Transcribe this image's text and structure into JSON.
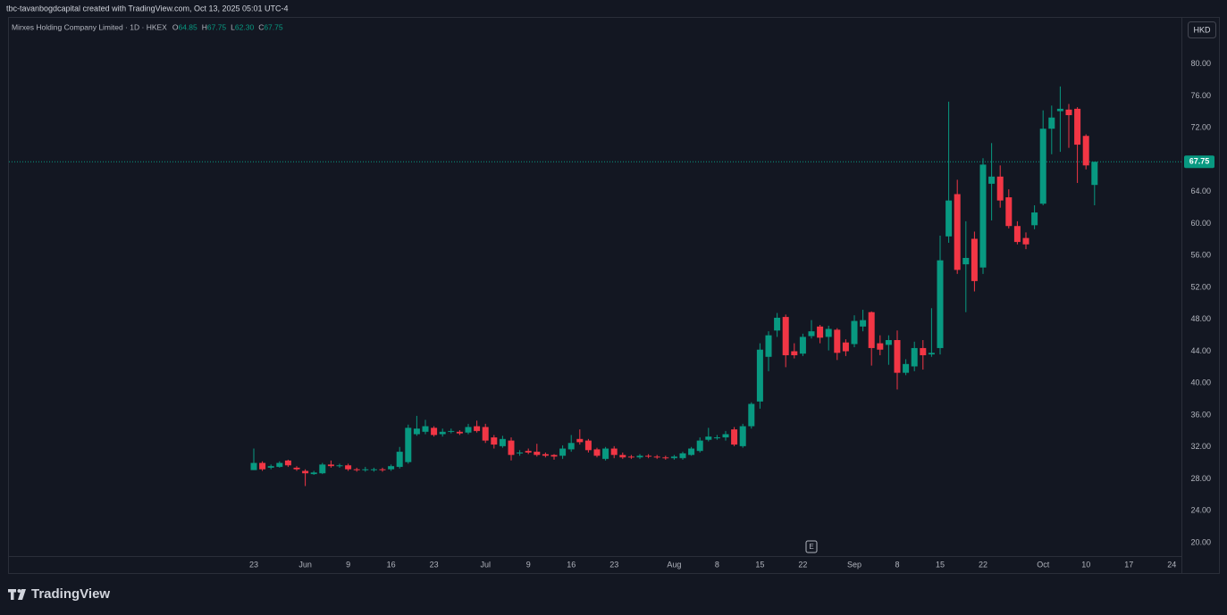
{
  "header": {
    "credit": "tbc-tavanbogdcapital created with TradingView.com, Oct 13, 2025 05:01 UTC-4"
  },
  "legend": {
    "symbol": "Mirxes Holding Company Limited · 1D · HKEX",
    "ohlc": [
      {
        "key": "O",
        "value": "64.85"
      },
      {
        "key": "H",
        "value": "67.75"
      },
      {
        "key": "L",
        "value": "62.30"
      },
      {
        "key": "C",
        "value": "67.75"
      }
    ]
  },
  "currency": "HKD",
  "brand": "TradingView",
  "chart_data": {
    "type": "candlestick",
    "up_color": "#089981",
    "down_color": "#f23645",
    "grid": false,
    "categories": [
      "23",
      null,
      null,
      null,
      null,
      null,
      "Jun",
      null,
      null,
      null,
      null,
      "9",
      null,
      null,
      null,
      null,
      "16",
      null,
      null,
      null,
      null,
      "23",
      null,
      null,
      null,
      null,
      null,
      "Jul",
      null,
      null,
      null,
      null,
      "9",
      null,
      null,
      null,
      null,
      "16",
      null,
      null,
      null,
      null,
      "23",
      null,
      null,
      null,
      null,
      null,
      null,
      "Aug",
      null,
      null,
      null,
      null,
      "8",
      null,
      null,
      null,
      null,
      "15",
      null,
      null,
      null,
      null,
      "22",
      null,
      null,
      null,
      null,
      null,
      "Sep",
      null,
      null,
      null,
      null,
      "8",
      null,
      null,
      null,
      null,
      "15",
      null,
      null,
      null,
      null,
      "22",
      null,
      null,
      null,
      null,
      null,
      null,
      "Oct",
      null,
      null,
      null,
      null,
      "10",
      null,
      null,
      null,
      null,
      "17",
      null,
      null,
      null,
      null,
      "24"
    ],
    "open": [
      29.1,
      30.0,
      29.4,
      29.5,
      30.3,
      29.4,
      29.0,
      28.6,
      28.7,
      29.8,
      29.6,
      29.7,
      29.2,
      29.2,
      29.1,
      29.2,
      29.2,
      29.5,
      30.1,
      33.6,
      33.9,
      34.4,
      33.6,
      33.9,
      33.9,
      33.8,
      34.6,
      34.5,
      33.2,
      32.1,
      32.8,
      31.3,
      31.5,
      31.4,
      31.1,
      31.0,
      30.9,
      31.7,
      33.0,
      32.8,
      31.7,
      30.5,
      31.8,
      31.0,
      30.8,
      30.7,
      30.9,
      30.8,
      30.7,
      30.6,
      30.6,
      31.0,
      31.5,
      32.9,
      33.1,
      33.2,
      34.2,
      32.1,
      34.6,
      37.7,
      43.3,
      46.6,
      48.3,
      44.0,
      43.7,
      45.9,
      47.1,
      45.8,
      46.7,
      45.1,
      44.9,
      47.1,
      48.9,
      45.0,
      44.8,
      45.4,
      41.3,
      42.1,
      44.4,
      43.6,
      44.4,
      58.4,
      63.7,
      54.9,
      58.1,
      54.5,
      65.0,
      65.9,
      63.3,
      59.7,
      58.2,
      59.8,
      62.5,
      71.9,
      74.1,
      74.3,
      74.4,
      71.0,
      64.85,
      null,
      null,
      null,
      null,
      null,
      null,
      null,
      null,
      null
    ],
    "high": [
      31.8,
      30.2,
      29.8,
      30.2,
      30.4,
      29.6,
      29.2,
      29.0,
      30.0,
      30.3,
      29.9,
      29.9,
      29.4,
      29.5,
      29.4,
      29.4,
      29.8,
      32.0,
      34.8,
      35.9,
      35.4,
      34.6,
      34.3,
      34.3,
      34.1,
      34.9,
      35.3,
      34.9,
      33.5,
      33.4,
      33.2,
      31.6,
      31.8,
      32.4,
      31.3,
      31.1,
      32.2,
      33.5,
      34.2,
      33.0,
      31.9,
      32.0,
      32.1,
      31.3,
      31.0,
      31.1,
      31.1,
      31.0,
      30.9,
      31.0,
      31.4,
      32.0,
      33.2,
      34.4,
      33.5,
      34.0,
      34.5,
      34.9,
      37.6,
      45.0,
      46.5,
      48.8,
      48.6,
      45.0,
      46.2,
      47.9,
      47.3,
      47.2,
      46.9,
      45.5,
      48.5,
      49.2,
      49.0,
      46.0,
      46.0,
      46.6,
      43.0,
      45.2,
      45.4,
      49.4,
      58.5,
      75.3,
      65.5,
      60.3,
      59.0,
      68.2,
      70.1,
      67.3,
      64.3,
      60.3,
      58.9,
      62.3,
      74.2,
      74.8,
      77.2,
      75.0,
      74.6,
      71.2,
      67.75,
      null,
      null,
      null,
      null,
      null,
      null,
      null,
      null,
      null
    ],
    "low": [
      29.1,
      29.0,
      29.2,
      29.4,
      29.5,
      29.0,
      27.1,
      28.5,
      28.6,
      29.4,
      29.4,
      29.0,
      28.9,
      28.9,
      28.9,
      28.9,
      29.0,
      29.3,
      29.9,
      33.4,
      33.6,
      33.3,
      33.3,
      33.7,
      33.5,
      33.6,
      33.8,
      32.5,
      31.8,
      31.9,
      30.3,
      30.9,
      31.1,
      30.8,
      30.7,
      30.4,
      30.5,
      31.4,
      32.3,
      31.3,
      30.7,
      30.3,
      30.6,
      30.5,
      30.5,
      30.5,
      30.6,
      30.5,
      30.4,
      30.4,
      30.4,
      30.9,
      31.3,
      32.7,
      32.9,
      32.8,
      32.1,
      31.9,
      34.3,
      36.8,
      41.5,
      45.8,
      42.0,
      43.1,
      43.4,
      45.6,
      45.0,
      44.1,
      42.9,
      43.4,
      44.5,
      46.5,
      42.2,
      43.5,
      42.3,
      39.2,
      41.0,
      41.5,
      41.7,
      43.3,
      43.6,
      57.6,
      53.7,
      48.9,
      51.5,
      53.7,
      60.4,
      62.0,
      59.4,
      57.4,
      56.8,
      59.3,
      62.3,
      68.7,
      69.0,
      69.5,
      65.1,
      66.8,
      62.3,
      null,
      null,
      null,
      null,
      null,
      null,
      null,
      null,
      null
    ],
    "close": [
      30.0,
      29.2,
      29.6,
      30.0,
      29.7,
      29.2,
      28.7,
      28.8,
      29.8,
      29.6,
      29.7,
      29.2,
      29.1,
      29.2,
      29.2,
      29.1,
      29.6,
      31.4,
      34.4,
      34.3,
      34.6,
      33.5,
      33.9,
      34.0,
      33.7,
      34.5,
      34.0,
      32.8,
      32.3,
      33.0,
      31.0,
      31.3,
      31.3,
      31.0,
      30.9,
      30.8,
      31.8,
      32.5,
      32.6,
      31.6,
      30.9,
      31.8,
      31.0,
      30.7,
      30.7,
      30.9,
      30.8,
      30.7,
      30.6,
      30.8,
      31.2,
      31.8,
      32.8,
      33.3,
      33.2,
      33.6,
      32.3,
      34.6,
      37.4,
      44.2,
      46.0,
      48.2,
      43.5,
      43.5,
      45.8,
      46.5,
      45.7,
      46.8,
      43.8,
      44.0,
      47.8,
      47.9,
      44.4,
      44.2,
      45.4,
      41.3,
      42.4,
      44.4,
      43.5,
      43.8,
      55.4,
      62.9,
      54.2,
      55.7,
      52.8,
      67.4,
      65.9,
      62.9,
      59.7,
      57.7,
      57.4,
      61.4,
      71.9,
      73.3,
      74.4,
      73.6,
      69.9,
      67.3,
      67.75,
      null,
      null,
      null,
      null,
      null,
      null,
      null,
      null,
      null
    ],
    "ylim": [
      16.08,
      85.8
    ],
    "yticks": [
      {
        "value": 20,
        "label": "20.00"
      },
      {
        "value": 24,
        "label": "24.00"
      },
      {
        "value": 28,
        "label": "28.00"
      },
      {
        "value": 32,
        "label": "32.00"
      },
      {
        "value": 36,
        "label": "36.00"
      },
      {
        "value": 40,
        "label": "40.00"
      },
      {
        "value": 44,
        "label": "44.00"
      },
      {
        "value": 48,
        "label": "48.00"
      },
      {
        "value": 52,
        "label": "52.00"
      },
      {
        "value": 56,
        "label": "56.00"
      },
      {
        "value": 60,
        "label": "60.00"
      },
      {
        "value": 64,
        "label": "64.00"
      },
      {
        "value": 68,
        "label": "68.00"
      },
      {
        "value": 72,
        "label": "72.00"
      },
      {
        "value": 76,
        "label": "76.00"
      },
      {
        "value": 80,
        "label": "80.00"
      }
    ],
    "last_price": {
      "value": 67.75,
      "label": "67.75"
    },
    "annotations": [
      {
        "label": "E",
        "category": 65
      }
    ]
  }
}
